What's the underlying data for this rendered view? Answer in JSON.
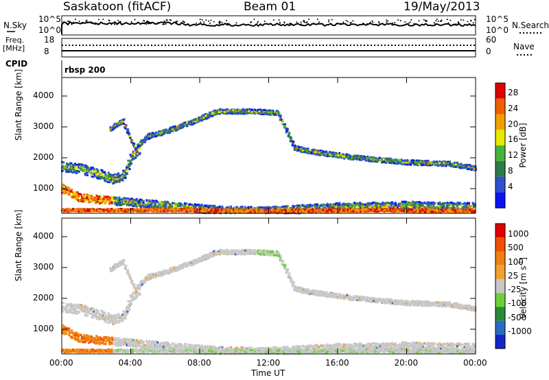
{
  "header": {
    "station": "Saskatoon (fitACF)",
    "beam": "Beam 01",
    "date": "19/May/2013"
  },
  "side_labels": {
    "nsky": "N.Sky",
    "nsky_ticks": [
      "10^5",
      "10^0"
    ],
    "nsearch": "N.Search",
    "nsearch_ticks": [
      "10^5",
      "10^0"
    ],
    "freq_line1": "Freq.",
    "freq_line2": "[MHz]",
    "freq_ticks": [
      "18",
      "8"
    ],
    "nave": "Nave",
    "nave_ticks": [
      "60",
      "0"
    ],
    "cpid": "CPID",
    "cpid_value": "rbsp 200"
  },
  "chart_data": [
    {
      "type": "heatmap",
      "panel": "power",
      "ylabel": "Slant Range [km]",
      "xlabel": "",
      "yticks": [
        1000,
        2000,
        3000,
        4000
      ],
      "ylim": [
        200,
        4600
      ],
      "xticks": [
        "00:00",
        "04:00",
        "08:00",
        "12:00",
        "16:00",
        "20:00",
        "00:00"
      ],
      "xlim_hours": [
        0,
        24
      ],
      "colorbar": {
        "label": "Power [dB]",
        "ticks": [
          "4",
          "8",
          "12",
          "16",
          "20",
          "24",
          "28"
        ],
        "colors": [
          "#0a14f0",
          "#3050d0",
          "#307a4a",
          "#46b43c",
          "#e8e800",
          "#f0a000",
          "#f06000",
          "#e00000"
        ]
      },
      "echo_bands": [
        {
          "name": "upper arc",
          "points": [
            [
              2.8,
              2950
            ],
            [
              3.5,
              3200
            ],
            [
              4.2,
              2300
            ],
            [
              5.0,
              2700
            ],
            [
              6.0,
              2850
            ],
            [
              7.5,
              3150
            ],
            [
              9.0,
              3500
            ],
            [
              11.0,
              3500
            ],
            [
              12.5,
              3450
            ],
            [
              13.5,
              2300
            ],
            [
              15.0,
              2150
            ],
            [
              17.0,
              2000
            ],
            [
              20.0,
              1850
            ],
            [
              22.5,
              1800
            ],
            [
              24.0,
              1650
            ]
          ]
        },
        {
          "name": "early loop",
          "points": [
            [
              0.0,
              1700
            ],
            [
              1.0,
              1650
            ],
            [
              2.0,
              1500
            ],
            [
              3.0,
              1300
            ],
            [
              3.6,
              1450
            ],
            [
              4.0,
              2000
            ],
            [
              4.5,
              2300
            ]
          ]
        },
        {
          "name": "low band",
          "points": [
            [
              0.0,
              1000
            ],
            [
              1.0,
              700
            ],
            [
              3.0,
              600
            ],
            [
              5.0,
              500
            ],
            [
              7.0,
              400
            ],
            [
              9.0,
              300
            ],
            [
              12.0,
              280
            ],
            [
              16.0,
              400
            ],
            [
              20.0,
              450
            ],
            [
              24.0,
              400
            ]
          ]
        },
        {
          "name": "near range",
          "points": [
            [
              0.0,
              300
            ],
            [
              6.0,
              300
            ],
            [
              12.0,
              280
            ],
            [
              18.0,
              300
            ],
            [
              24.0,
              280
            ]
          ]
        }
      ]
    },
    {
      "type": "heatmap",
      "panel": "velocity",
      "xlabel": "Time UT",
      "ylabel": "Slant Range [km]",
      "yticks": [
        1000,
        2000,
        3000,
        4000
      ],
      "ylim": [
        200,
        4600
      ],
      "xticks": [
        "00:00",
        "04:00",
        "08:00",
        "12:00",
        "16:00",
        "20:00",
        "00:00"
      ],
      "xlim_hours": [
        0,
        24
      ],
      "colorbar": {
        "label": "Velocity [m s",
        "label_sup": "-1",
        "label_end": "]",
        "ticks": [
          "1000",
          "500",
          "100",
          "25",
          "-25",
          "-100",
          "-500",
          "-1000"
        ],
        "colors": [
          "#1426c8",
          "#2a6ac0",
          "#2a8a3a",
          "#6cd03a",
          "#c8c8c8",
          "#f0a030",
          "#f08010",
          "#f05000",
          "#e00000"
        ]
      }
    }
  ]
}
